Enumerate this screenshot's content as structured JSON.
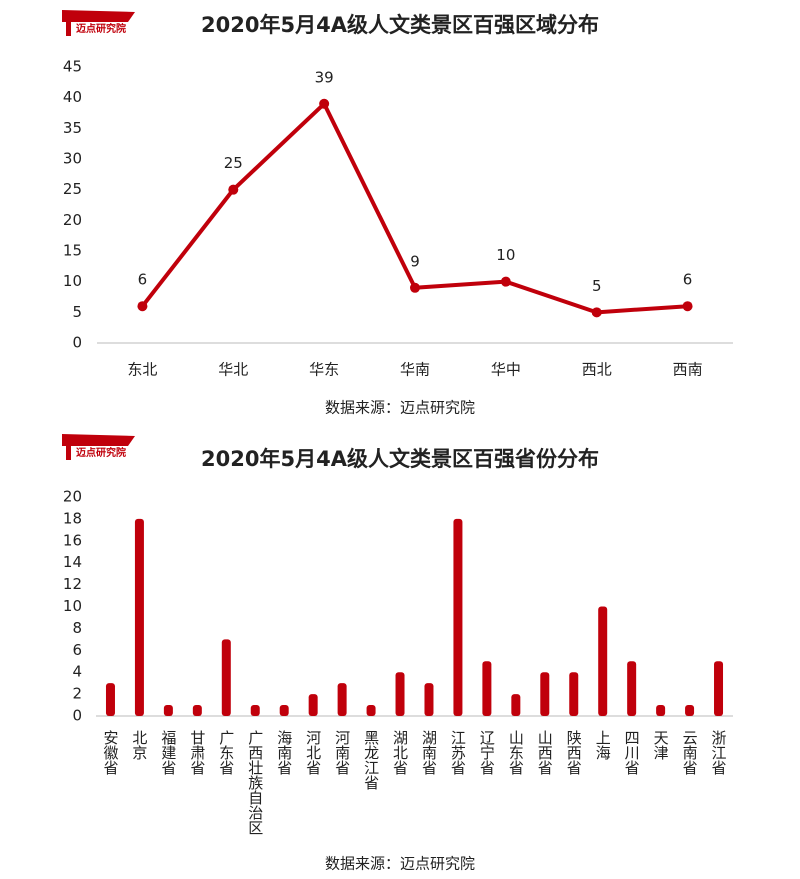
{
  "chart_data": [
    {
      "type": "line",
      "logo": "迈点研究院",
      "title": "2020年5月4A级人文类景区百强区域分布",
      "categories": [
        "东北",
        "华北",
        "华东",
        "华南",
        "华中",
        "西北",
        "西南"
      ],
      "values": [
        6,
        25,
        39,
        9,
        10,
        5,
        6
      ],
      "color": "#c0000b",
      "ylim": [
        0,
        45
      ],
      "yticks": [
        0,
        5,
        10,
        15,
        20,
        25,
        30,
        35,
        40,
        45
      ],
      "source": "数据来源：迈点研究院"
    },
    {
      "type": "bar",
      "logo": "迈点研究院",
      "title": "2020年5月4A级人文类景区百强省份分布",
      "categories": [
        "安徽省",
        "北京",
        "福建省",
        "甘肃省",
        "广东省",
        "广西壮族自治区",
        "海南省",
        "河北省",
        "河南省",
        "黑龙江省",
        "湖北省",
        "湖南省",
        "江苏省",
        "辽宁省",
        "山东省",
        "山西省",
        "陕西省",
        "上海",
        "四川省",
        "天津",
        "云南省",
        "浙江省"
      ],
      "values": [
        3,
        18,
        1,
        1,
        7,
        1,
        1,
        2,
        3,
        1,
        4,
        3,
        18,
        5,
        2,
        4,
        4,
        10,
        5,
        1,
        1,
        5
      ],
      "color": "#c0000b",
      "ylim": [
        0,
        20
      ],
      "yticks": [
        0,
        2,
        4,
        6,
        8,
        10,
        12,
        14,
        16,
        18,
        20
      ],
      "source": "数据来源：迈点研究院"
    }
  ]
}
